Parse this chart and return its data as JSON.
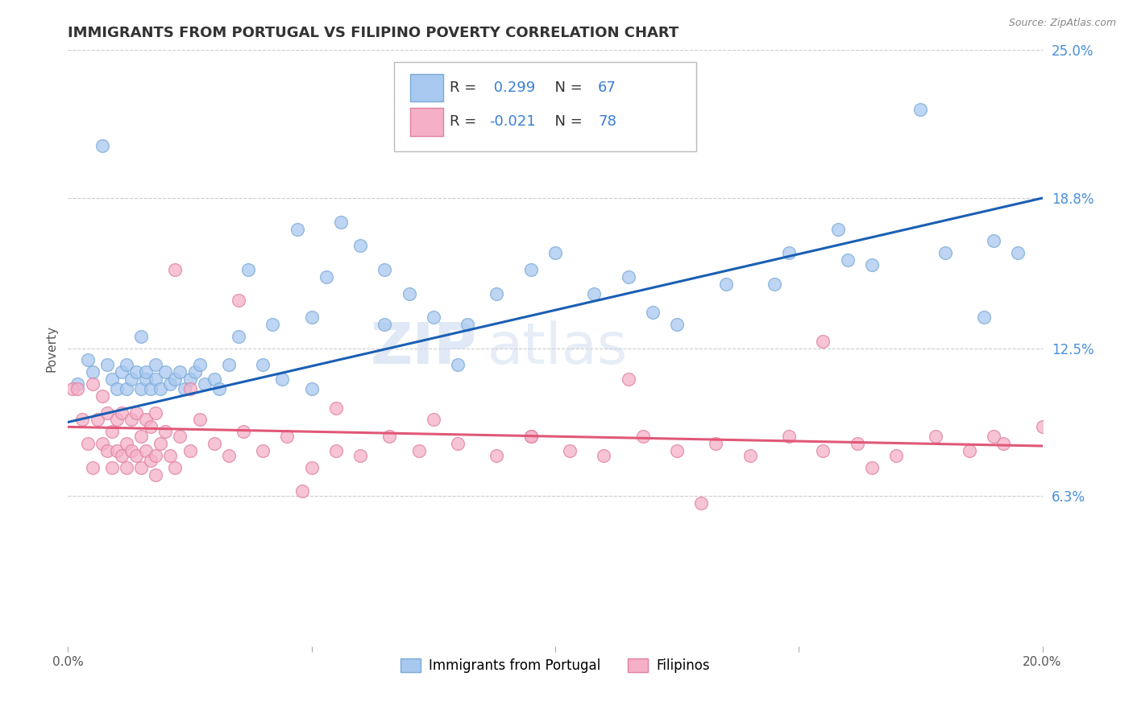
{
  "title": "IMMIGRANTS FROM PORTUGAL VS FILIPINO POVERTY CORRELATION CHART",
  "source": "Source: ZipAtlas.com",
  "ylabel": "Poverty",
  "xlim": [
    0.0,
    0.2
  ],
  "ylim": [
    0.0,
    0.25
  ],
  "xticks": [
    0.0,
    0.05,
    0.1,
    0.15,
    0.2
  ],
  "xtick_labels": [
    "0.0%",
    "",
    "",
    "",
    "20.0%"
  ],
  "ytick_vals": [
    0.063,
    0.125,
    0.188,
    0.25
  ],
  "ytick_labels": [
    "6.3%",
    "12.5%",
    "18.8%",
    "25.0%"
  ],
  "grid_color": "#cccccc",
  "background_color": "#ffffff",
  "blue_color": "#a8c8f0",
  "blue_edge_color": "#7aaad8",
  "pink_color": "#f5b0c8",
  "pink_edge_color": "#e080a0",
  "blue_line_color": "#1a5fb4",
  "pink_line_color": "#e05878",
  "ytick_color": "#4a90d9",
  "R_blue": 0.299,
  "N_blue": 67,
  "R_pink": -0.021,
  "N_pink": 78,
  "legend_label_blue": "Immigrants from Portugal",
  "legend_label_pink": "Filipinos",
  "watermark_zip": "ZIP",
  "watermark_atlas": "atlas",
  "title_fontsize": 13,
  "axis_fontsize": 10,
  "tick_fontsize": 11,
  "legend_fontsize": 13,
  "marker_size": 130,
  "marker_alpha": 0.75,
  "blue_line_intercept": 0.094,
  "blue_line_slope": 0.47,
  "pink_line_intercept": 0.092,
  "pink_line_slope": -0.04,
  "blue_scatter_x": [
    0.002,
    0.004,
    0.005,
    0.007,
    0.008,
    0.009,
    0.01,
    0.011,
    0.012,
    0.012,
    0.013,
    0.014,
    0.015,
    0.015,
    0.016,
    0.016,
    0.017,
    0.018,
    0.018,
    0.019,
    0.02,
    0.021,
    0.022,
    0.023,
    0.024,
    0.025,
    0.026,
    0.027,
    0.028,
    0.03,
    0.031,
    0.033,
    0.035,
    0.037,
    0.04,
    0.042,
    0.044,
    0.047,
    0.05,
    0.053,
    0.056,
    0.06,
    0.065,
    0.07,
    0.075,
    0.082,
    0.088,
    0.095,
    0.1,
    0.108,
    0.115,
    0.125,
    0.135,
    0.148,
    0.158,
    0.165,
    0.175,
    0.18,
    0.188,
    0.195,
    0.05,
    0.065,
    0.08,
    0.12,
    0.145,
    0.16,
    0.19
  ],
  "blue_scatter_y": [
    0.11,
    0.12,
    0.115,
    0.21,
    0.118,
    0.112,
    0.108,
    0.115,
    0.108,
    0.118,
    0.112,
    0.115,
    0.108,
    0.13,
    0.112,
    0.115,
    0.108,
    0.118,
    0.112,
    0.108,
    0.115,
    0.11,
    0.112,
    0.115,
    0.108,
    0.112,
    0.115,
    0.118,
    0.11,
    0.112,
    0.108,
    0.118,
    0.13,
    0.158,
    0.118,
    0.135,
    0.112,
    0.175,
    0.138,
    0.155,
    0.178,
    0.168,
    0.135,
    0.148,
    0.138,
    0.135,
    0.148,
    0.158,
    0.165,
    0.148,
    0.155,
    0.135,
    0.152,
    0.165,
    0.175,
    0.16,
    0.225,
    0.165,
    0.138,
    0.165,
    0.108,
    0.158,
    0.118,
    0.14,
    0.152,
    0.162,
    0.17
  ],
  "pink_scatter_x": [
    0.001,
    0.002,
    0.003,
    0.004,
    0.005,
    0.005,
    0.006,
    0.007,
    0.007,
    0.008,
    0.008,
    0.009,
    0.009,
    0.01,
    0.01,
    0.011,
    0.011,
    0.012,
    0.012,
    0.013,
    0.013,
    0.014,
    0.014,
    0.015,
    0.015,
    0.016,
    0.016,
    0.017,
    0.017,
    0.018,
    0.018,
    0.019,
    0.02,
    0.021,
    0.022,
    0.023,
    0.025,
    0.027,
    0.03,
    0.033,
    0.036,
    0.04,
    0.045,
    0.05,
    0.055,
    0.06,
    0.066,
    0.072,
    0.08,
    0.088,
    0.095,
    0.103,
    0.11,
    0.118,
    0.125,
    0.133,
    0.14,
    0.148,
    0.155,
    0.162,
    0.17,
    0.178,
    0.185,
    0.192,
    0.022,
    0.035,
    0.055,
    0.075,
    0.095,
    0.115,
    0.048,
    0.13,
    0.155,
    0.025,
    0.018,
    0.165,
    0.19,
    0.2
  ],
  "pink_scatter_y": [
    0.108,
    0.108,
    0.095,
    0.085,
    0.075,
    0.11,
    0.095,
    0.085,
    0.105,
    0.082,
    0.098,
    0.075,
    0.09,
    0.082,
    0.095,
    0.08,
    0.098,
    0.085,
    0.075,
    0.082,
    0.095,
    0.08,
    0.098,
    0.075,
    0.088,
    0.082,
    0.095,
    0.078,
    0.092,
    0.08,
    0.098,
    0.085,
    0.09,
    0.08,
    0.075,
    0.088,
    0.082,
    0.095,
    0.085,
    0.08,
    0.09,
    0.082,
    0.088,
    0.075,
    0.082,
    0.08,
    0.088,
    0.082,
    0.085,
    0.08,
    0.088,
    0.082,
    0.08,
    0.088,
    0.082,
    0.085,
    0.08,
    0.088,
    0.082,
    0.085,
    0.08,
    0.088,
    0.082,
    0.085,
    0.158,
    0.145,
    0.1,
    0.095,
    0.088,
    0.112,
    0.065,
    0.06,
    0.128,
    0.108,
    0.072,
    0.075,
    0.088,
    0.092
  ]
}
